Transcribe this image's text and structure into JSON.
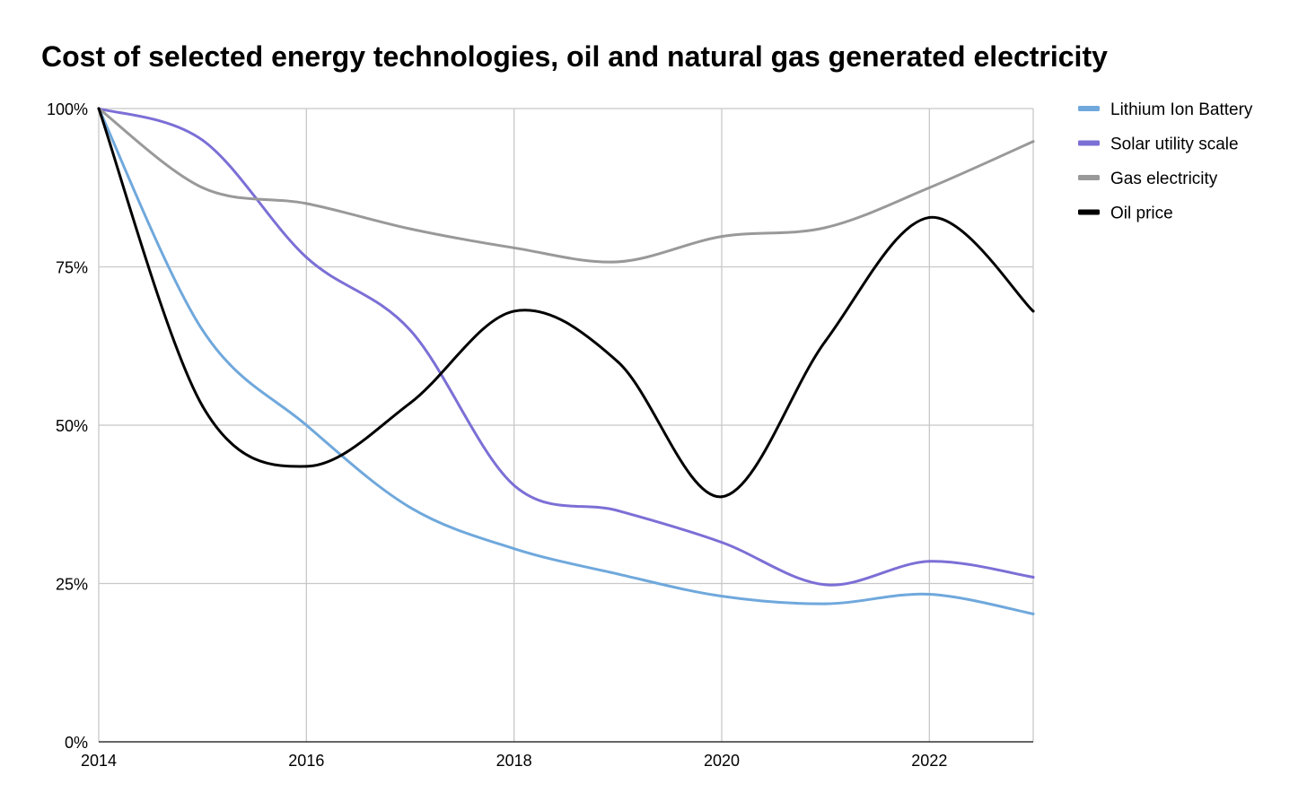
{
  "chart_data": {
    "type": "line",
    "title": "Cost of selected energy technologies, oil and natural gas generated electricity",
    "xlabel": "",
    "ylabel": "",
    "x": [
      2014,
      2015,
      2016,
      2017,
      2018,
      2019,
      2020,
      2021,
      2022,
      2023
    ],
    "xlim": [
      2014,
      2023
    ],
    "x_ticks": [
      2014,
      2016,
      2018,
      2020,
      2022
    ],
    "x_tick_labels": [
      "2014",
      "2016",
      "2018",
      "2020",
      "2022"
    ],
    "ylim": [
      0,
      100
    ],
    "y_ticks": [
      0,
      25,
      50,
      75,
      100
    ],
    "y_tick_labels": [
      "0%",
      "25%",
      "50%",
      "75%",
      "100%"
    ],
    "grid": true,
    "legend_position": "right",
    "series": [
      {
        "name": "Lithium Ion Battery",
        "color": "#6fa8dc",
        "values": [
          100,
          65,
          50,
          37,
          30.5,
          26.5,
          23,
          21.8,
          23.3,
          20.2
        ]
      },
      {
        "name": "Solar utility scale",
        "color": "#7b6fd6",
        "values": [
          100,
          95,
          76.5,
          65,
          40.5,
          36.5,
          31.5,
          24.8,
          28.5,
          26
        ]
      },
      {
        "name": "Gas electricity",
        "color": "#999999",
        "values": [
          100,
          87.5,
          85,
          81,
          78,
          75.8,
          79.8,
          81.2,
          87.5,
          94.8
        ]
      },
      {
        "name": "Oil price",
        "color": "#000000",
        "values": [
          100,
          53,
          43.5,
          53.5,
          68,
          60,
          38.7,
          63.3,
          82.8,
          68
        ]
      }
    ]
  }
}
